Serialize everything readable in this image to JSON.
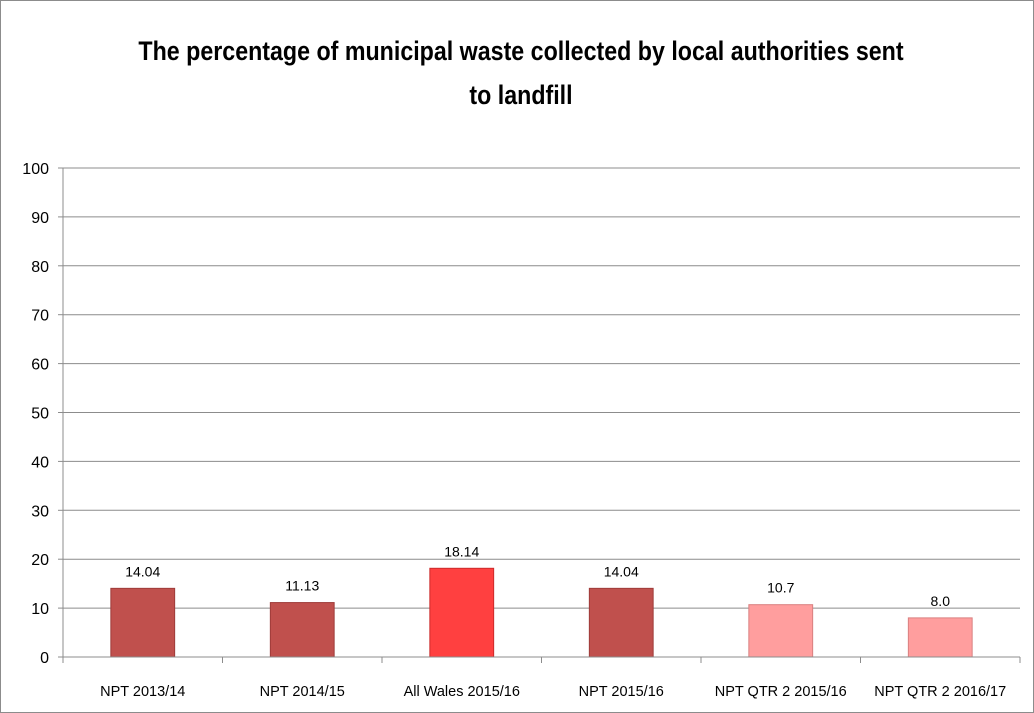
{
  "chart_data": {
    "type": "bar",
    "title_lines": [
      "The percentage of municipal waste collected by local authorities sent",
      "to landfill"
    ],
    "xlabel": "",
    "ylabel": "",
    "ylim": [
      0,
      100
    ],
    "y_ticks": [
      "0",
      "10",
      "20",
      "30",
      "40",
      "50",
      "60",
      "70",
      "80",
      "90",
      "100"
    ],
    "grid": true,
    "legend": "none",
    "categories": [
      "NPT 2013/14",
      "NPT 2014/15",
      "All Wales 2015/16",
      "NPT 2015/16",
      "NPT QTR 2 2015/16",
      "NPT QTR 2 2016/17"
    ],
    "values": [
      14.04,
      11.13,
      18.14,
      14.04,
      10.7,
      8.0
    ],
    "value_labels": [
      "14.04",
      "11.13",
      "18.14",
      "14.04",
      "10.7",
      "8.0"
    ],
    "bar_colors": [
      "#c0504d",
      "#c0504d",
      "#ff4040",
      "#c0504d",
      "#ff9e9e",
      "#ff9e9e"
    ],
    "bar_edge_colors": [
      "#9e3b39",
      "#9e3b39",
      "#cc2a2a",
      "#9e3b39",
      "#d98080",
      "#d98080"
    ]
  }
}
